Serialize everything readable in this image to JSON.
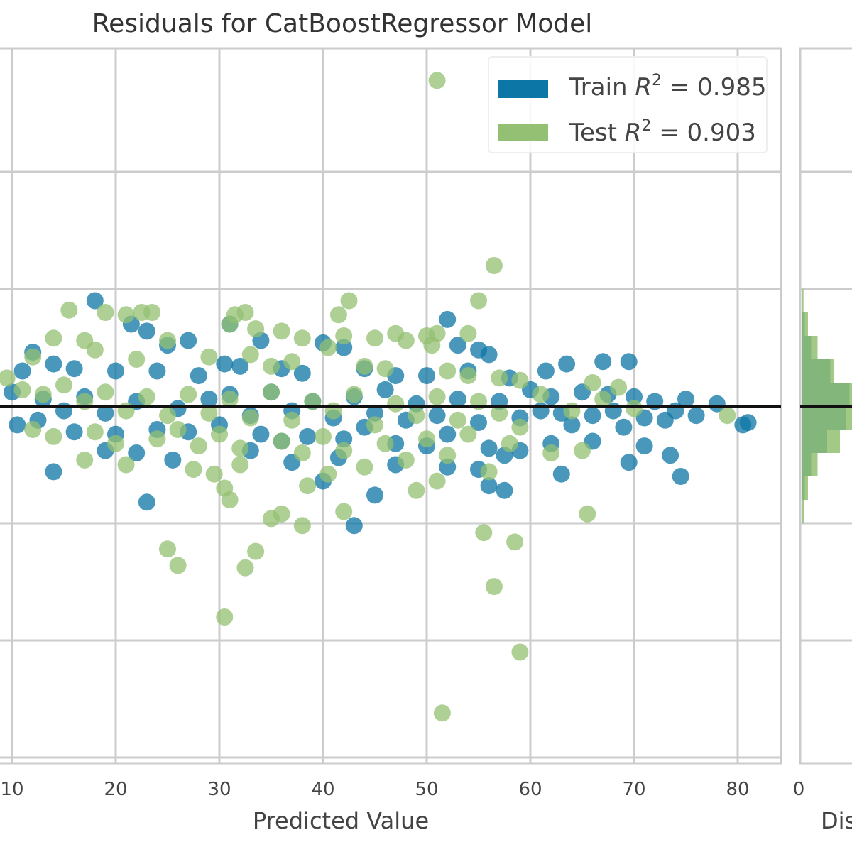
{
  "chart_data": [
    {
      "type": "scatter",
      "title": "Residuals for CatBoostRegressor Model",
      "xlabel": "Predicted Value",
      "ylabel": "",
      "xlim": [
        9,
        84
      ],
      "ylim": [
        -15,
        14
      ],
      "x_ticks": [
        "10",
        "20",
        "30",
        "40",
        "50",
        "60",
        "70",
        "80"
      ],
      "grid": true,
      "legend": "top-right",
      "reference_line_y": 0,
      "series": [
        {
          "name": "Train R² = 0.985",
          "name_prefix": "Train",
          "r2": "0.985",
          "color": "#0c76a6",
          "points": [
            [
              18,
              4.5
            ],
            [
              21.5,
              3.5
            ],
            [
              23,
              3.2
            ],
            [
              25,
              2.6
            ],
            [
              27,
              2.8
            ],
            [
              31,
              3.5
            ],
            [
              34,
              2.8
            ],
            [
              40,
              2.7
            ],
            [
              42,
              2.5
            ],
            [
              52,
              3.7
            ],
            [
              53,
              2.6
            ],
            [
              55,
              2.4
            ],
            [
              56,
              2.2
            ],
            [
              61.5,
              1.5
            ],
            [
              63.5,
              1.8
            ],
            [
              67,
              1.9
            ],
            [
              69.5,
              1.9
            ],
            [
              12,
              2.3
            ],
            [
              11,
              1.5
            ],
            [
              14,
              1.8
            ],
            [
              16,
              1.6
            ],
            [
              20,
              1.5
            ],
            [
              24,
              1.5
            ],
            [
              28,
              1.3
            ],
            [
              30.5,
              1.8
            ],
            [
              32,
              1.7
            ],
            [
              36,
              1.6
            ],
            [
              38,
              1.4
            ],
            [
              44,
              1.6
            ],
            [
              47,
              1.3
            ],
            [
              50,
              1.3
            ],
            [
              54,
              1.5
            ],
            [
              58,
              1.2
            ],
            [
              60,
              0.7
            ],
            [
              62,
              0.4
            ],
            [
              65,
              0.6
            ],
            [
              67.5,
              0.5
            ],
            [
              70,
              0.4
            ],
            [
              72,
              0.2
            ],
            [
              75,
              0.3
            ],
            [
              78,
              0.1
            ],
            [
              10,
              0.6
            ],
            [
              13,
              0.3
            ],
            [
              15,
              -0.2
            ],
            [
              17,
              0.4
            ],
            [
              19,
              -0.3
            ],
            [
              22,
              0.2
            ],
            [
              26,
              -0.1
            ],
            [
              29,
              0.3
            ],
            [
              31,
              0.5
            ],
            [
              33,
              -0.4
            ],
            [
              35,
              0.6
            ],
            [
              37,
              -0.2
            ],
            [
              39,
              0.2
            ],
            [
              41,
              -0.5
            ],
            [
              43,
              0.4
            ],
            [
              45,
              -0.3
            ],
            [
              46,
              0.7
            ],
            [
              48,
              -0.6
            ],
            [
              49,
              0.1
            ],
            [
              51,
              -0.4
            ],
            [
              53,
              0.3
            ],
            [
              55,
              -0.7
            ],
            [
              57,
              0.2
            ],
            [
              59,
              -0.5
            ],
            [
              61,
              -0.2
            ],
            [
              63,
              -0.3
            ],
            [
              64,
              -0.8
            ],
            [
              66,
              -0.4
            ],
            [
              68,
              -0.2
            ],
            [
              69,
              -0.9
            ],
            [
              71,
              -0.5
            ],
            [
              73,
              -0.6
            ],
            [
              74,
              -0.2
            ],
            [
              76,
              -0.4
            ],
            [
              80.5,
              -0.8
            ],
            [
              81,
              -0.7
            ],
            [
              10.5,
              -0.8
            ],
            [
              12.5,
              -0.6
            ],
            [
              16,
              -1.1
            ],
            [
              20,
              -1.2
            ],
            [
              24,
              -1.0
            ],
            [
              27,
              -1.1
            ],
            [
              30,
              -0.8
            ],
            [
              34,
              -1.2
            ],
            [
              36,
              -1.5
            ],
            [
              38.5,
              -1.3
            ],
            [
              42,
              -1.4
            ],
            [
              44,
              -0.9
            ],
            [
              47,
              -1.6
            ],
            [
              50,
              -1.7
            ],
            [
              52,
              -1.2
            ],
            [
              56,
              -1.8
            ],
            [
              59,
              -1.9
            ],
            [
              62,
              -1.6
            ],
            [
              66,
              -1.5
            ],
            [
              71,
              -1.7
            ],
            [
              73.5,
              -2.1
            ],
            [
              14,
              -2.8
            ],
            [
              19,
              -1.9
            ],
            [
              22,
              -2.0
            ],
            [
              25.5,
              -2.3
            ],
            [
              33,
              -1.9
            ],
            [
              37,
              -2.4
            ],
            [
              41.5,
              -2.2
            ],
            [
              47,
              -2.5
            ],
            [
              52,
              -2.6
            ],
            [
              55,
              -2.7
            ],
            [
              57.5,
              -2.1
            ],
            [
              63,
              -2.9
            ],
            [
              69.5,
              -2.4
            ],
            [
              74.5,
              -3.0
            ],
            [
              23,
              -4.1
            ],
            [
              43,
              -5.1
            ],
            [
              45,
              -3.8
            ],
            [
              57.5,
              -3.6
            ],
            [
              40,
              -3.2
            ],
            [
              56,
              -3.4
            ]
          ]
        },
        {
          "name": "Test R² = 0.903",
          "name_prefix": "Test",
          "r2": "0.903",
          "color": "#93c072",
          "points": [
            [
              51,
              13.9
            ],
            [
              56.5,
              6.0
            ],
            [
              55,
              4.5
            ],
            [
              42.5,
              4.5
            ],
            [
              41.5,
              3.9
            ],
            [
              15.5,
              4.1
            ],
            [
              19,
              4.0
            ],
            [
              21,
              3.9
            ],
            [
              22.5,
              4.0
            ],
            [
              23.5,
              4.0
            ],
            [
              31.5,
              3.9
            ],
            [
              32.5,
              4.0
            ],
            [
              31,
              3.5
            ],
            [
              33.5,
              3.3
            ],
            [
              42,
              3.0
            ],
            [
              47,
              3.1
            ],
            [
              50,
              3.0
            ],
            [
              51,
              3.1
            ],
            [
              54,
              3.1
            ],
            [
              14,
              2.9
            ],
            [
              17,
              2.8
            ],
            [
              25,
              2.8
            ],
            [
              36,
              3.2
            ],
            [
              38,
              2.9
            ],
            [
              40.5,
              2.5
            ],
            [
              45,
              2.9
            ],
            [
              48,
              2.8
            ],
            [
              50.5,
              2.6
            ],
            [
              12,
              2.1
            ],
            [
              18,
              2.4
            ],
            [
              22,
              2.0
            ],
            [
              29,
              2.1
            ],
            [
              33,
              2.2
            ],
            [
              35,
              1.7
            ],
            [
              37,
              1.9
            ],
            [
              44,
              1.7
            ],
            [
              46,
              1.6
            ],
            [
              52,
              1.5
            ],
            [
              54,
              1.3
            ],
            [
              57,
              1.2
            ],
            [
              59,
              1.1
            ],
            [
              66,
              1.0
            ],
            [
              68.5,
              0.8
            ],
            [
              9.5,
              1.2
            ],
            [
              11,
              0.7
            ],
            [
              13,
              0.5
            ],
            [
              15,
              0.9
            ],
            [
              17,
              0.2
            ],
            [
              19,
              0.6
            ],
            [
              21,
              -0.2
            ],
            [
              23,
              0.4
            ],
            [
              25,
              -0.4
            ],
            [
              27,
              0.5
            ],
            [
              29,
              -0.3
            ],
            [
              31,
              0.3
            ],
            [
              33,
              -0.5
            ],
            [
              35,
              0.6
            ],
            [
              37,
              -0.6
            ],
            [
              39,
              0.2
            ],
            [
              41,
              -0.2
            ],
            [
              43,
              0.5
            ],
            [
              45,
              -0.8
            ],
            [
              47,
              0.1
            ],
            [
              49,
              -0.4
            ],
            [
              51,
              0.4
            ],
            [
              53,
              -0.6
            ],
            [
              55,
              0.2
            ],
            [
              57,
              -0.3
            ],
            [
              59,
              -0.9
            ],
            [
              61,
              0.5
            ],
            [
              64,
              -0.2
            ],
            [
              67,
              0.3
            ],
            [
              70,
              -0.1
            ],
            [
              79,
              -0.4
            ],
            [
              12,
              -1.0
            ],
            [
              14,
              -1.3
            ],
            [
              18,
              -1.1
            ],
            [
              20,
              -1.6
            ],
            [
              24,
              -1.4
            ],
            [
              26,
              -1.0
            ],
            [
              28,
              -1.7
            ],
            [
              30,
              -1.2
            ],
            [
              32,
              -1.8
            ],
            [
              36,
              -1.5
            ],
            [
              38,
              -2.0
            ],
            [
              40,
              -1.3
            ],
            [
              42,
              -1.9
            ],
            [
              46,
              -1.6
            ],
            [
              48,
              -2.3
            ],
            [
              50,
              -1.4
            ],
            [
              52,
              -2.1
            ],
            [
              54,
              -1.2
            ],
            [
              58,
              -1.6
            ],
            [
              62,
              -2.0
            ],
            [
              65,
              -1.9
            ],
            [
              17,
              -2.3
            ],
            [
              21,
              -2.5
            ],
            [
              27.5,
              -2.7
            ],
            [
              29.5,
              -2.9
            ],
            [
              32,
              -2.5
            ],
            [
              38.5,
              -3.4
            ],
            [
              40.5,
              -2.9
            ],
            [
              44,
              -2.6
            ],
            [
              49,
              -3.6
            ],
            [
              51,
              -3.2
            ],
            [
              56,
              -2.8
            ],
            [
              30.5,
              -3.5
            ],
            [
              31,
              -4.0
            ],
            [
              35,
              -4.8
            ],
            [
              36,
              -4.6
            ],
            [
              38,
              -5.1
            ],
            [
              42,
              -4.5
            ],
            [
              25,
              -6.1
            ],
            [
              26,
              -6.8
            ],
            [
              32.5,
              -6.9
            ],
            [
              33.5,
              -6.2
            ],
            [
              30.5,
              -9.0
            ],
            [
              55.5,
              -5.4
            ],
            [
              58.5,
              -5.8
            ],
            [
              56.5,
              -7.7
            ],
            [
              59,
              -10.5
            ],
            [
              51.5,
              -13.1
            ],
            [
              65.5,
              -4.6
            ]
          ]
        }
      ]
    },
    {
      "type": "histogram",
      "xlabel": "Dis",
      "x_tick_first": "0",
      "orientation": "horizontal",
      "series": [
        {
          "name": "Train",
          "color": "#0c76a6",
          "bins": [
            [
              -3.5,
              0.5
            ],
            [
              -2.5,
              1.5
            ],
            [
              -1.5,
              4.0
            ],
            [
              -0.5,
              7.0
            ],
            [
              0.5,
              7.5
            ],
            [
              1.5,
              4.5
            ],
            [
              2.5,
              1.5
            ],
            [
              3.5,
              0.5
            ]
          ]
        },
        {
          "name": "Test",
          "color": "#93c072",
          "bins": [
            [
              -4.5,
              0.4
            ],
            [
              -3.5,
              1.0
            ],
            [
              -2.5,
              2.5
            ],
            [
              -1.5,
              6.0
            ],
            [
              -0.5,
              9.0
            ],
            [
              0.5,
              9.5
            ],
            [
              1.5,
              5.0
            ],
            [
              2.5,
              2.5
            ],
            [
              3.5,
              1.0
            ],
            [
              4.5,
              0.3
            ]
          ]
        }
      ]
    }
  ]
}
